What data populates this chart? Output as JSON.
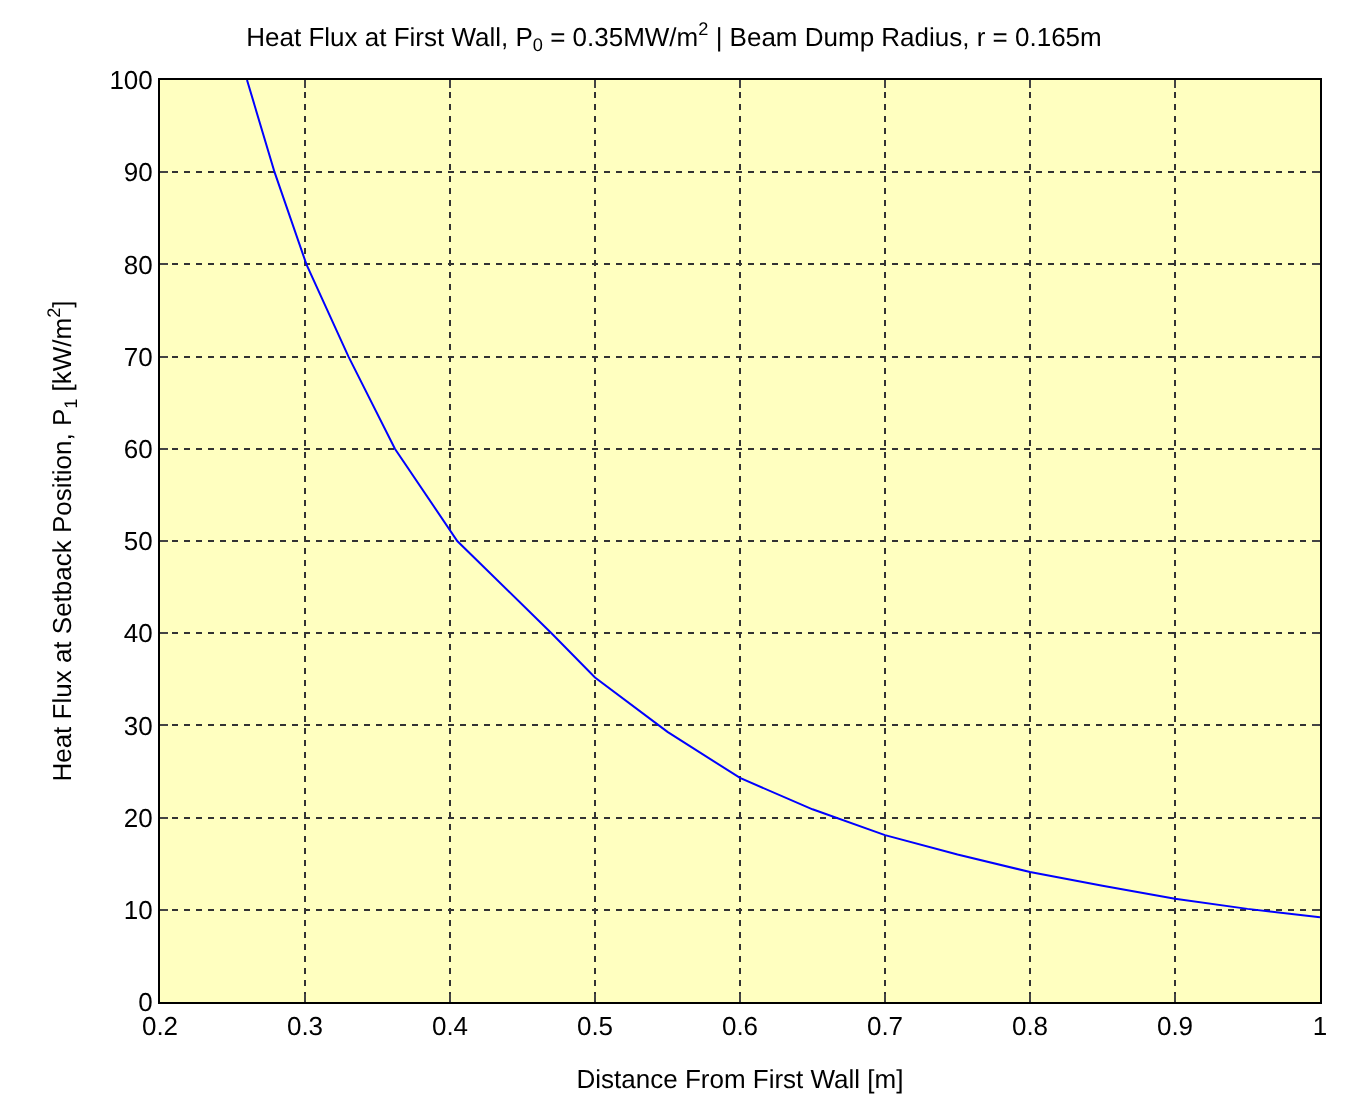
{
  "chart_data": {
    "type": "line",
    "title": "Heat Flux at First Wall, P$_{0}$ = 0.35MW/m$^{2}$ | Beam Dump Radius, r = 0.165m",
    "xlabel": "Distance From First Wall [m]",
    "ylabel": "Heat Flux at Setback Position, P$_{1}$ [kW/m$^{2}$]",
    "x": [
      0.26,
      0.279,
      0.301,
      0.33,
      0.362,
      0.405,
      0.47,
      0.5,
      0.55,
      0.6,
      0.65,
      0.7,
      0.75,
      0.8,
      0.85,
      0.9,
      0.95,
      1.0
    ],
    "series": [
      {
        "color": "#0000ff",
        "values": [
          100,
          90,
          80,
          70,
          60,
          50,
          40,
          35.2,
          29.3,
          24.3,
          20.9,
          18.1,
          16.0,
          14.1,
          12.6,
          11.2,
          10.1,
          9.2
        ]
      }
    ],
    "xlim": [
      0.2,
      1.0
    ],
    "ylim": [
      0,
      100
    ],
    "xticks": [
      0.2,
      0.3,
      0.4,
      0.5,
      0.6,
      0.7,
      0.8,
      0.9,
      1
    ],
    "yticks": [
      0,
      10,
      20,
      30,
      40,
      50,
      60,
      70,
      80,
      90,
      100
    ],
    "grid": true,
    "marker": "none",
    "line_style": "solid"
  }
}
